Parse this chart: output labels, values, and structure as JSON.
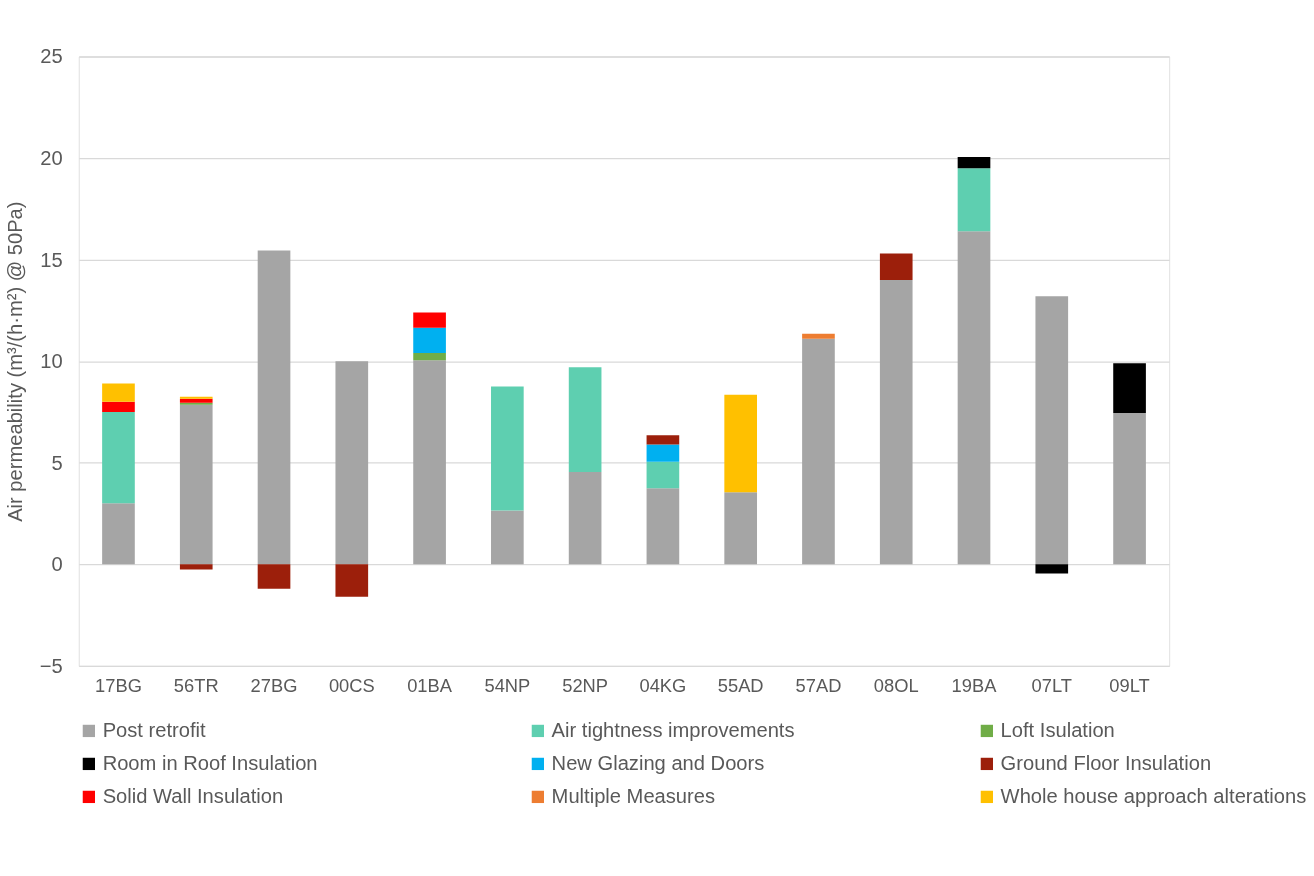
{
  "chart_data": {
    "type": "bar",
    "stacked": true,
    "ylabel": "Air permeability  (m³/(h·m²) @ 50Pa)",
    "categories": [
      "17BG",
      "56TR",
      "27BG",
      "00CS",
      "01BA",
      "54NP",
      "52NP",
      "04KG",
      "55AD",
      "57AD",
      "08OL",
      "19BA",
      "07LT",
      "09LT"
    ],
    "ylim": [
      -5,
      25
    ],
    "yticks": [
      -5,
      0,
      5,
      10,
      15,
      20,
      25
    ],
    "grid": "y",
    "legend": "bottom",
    "series": [
      {
        "name": "Post retrofit",
        "color": "#a5a5a5",
        "values": [
          3.0,
          7.85,
          15.45,
          10.0,
          10.05,
          2.65,
          4.55,
          3.75,
          3.55,
          11.1,
          14.0,
          16.4,
          13.2,
          7.45
        ]
      },
      {
        "name": "Air tightness improvements",
        "color": "#5ecfb0",
        "values": [
          4.5,
          null,
          null,
          null,
          null,
          6.1,
          5.15,
          1.3,
          null,
          null,
          null,
          3.1,
          null,
          null
        ]
      },
      {
        "name": "Loft Isulation",
        "color": "#70ad47",
        "values": [
          null,
          0.1,
          null,
          null,
          0.35,
          null,
          null,
          null,
          null,
          null,
          null,
          null,
          null,
          null
        ]
      },
      {
        "name": "Room in Roof Insulation",
        "color": "#000000",
        "values": [
          null,
          null,
          null,
          null,
          null,
          null,
          null,
          null,
          null,
          null,
          null,
          0.55,
          -0.45,
          2.45
        ]
      },
      {
        "name": "New Glazing and Doors",
        "color": "#00b0f0",
        "values": [
          null,
          null,
          null,
          null,
          1.25,
          null,
          null,
          0.85,
          null,
          null,
          null,
          null,
          null,
          null
        ]
      },
      {
        "name": "Ground Floor Insulation",
        "color": "#9c1f0b",
        "values": [
          null,
          -0.25,
          -1.2,
          -1.6,
          null,
          null,
          null,
          0.45,
          null,
          null,
          1.3,
          null,
          null,
          null
        ]
      },
      {
        "name": "Solid Wall Insulation",
        "color": "#ff0000",
        "values": [
          0.5,
          0.2,
          null,
          null,
          0.75,
          null,
          null,
          null,
          null,
          null,
          null,
          null,
          null,
          null
        ]
      },
      {
        "name": "Multiple Measures",
        "color": "#ed7d31",
        "values": [
          null,
          null,
          null,
          null,
          null,
          null,
          null,
          null,
          null,
          0.25,
          null,
          null,
          null,
          null
        ]
      },
      {
        "name": "Whole house approach alterations",
        "color": "#ffc000",
        "values": [
          0.9,
          0.1,
          null,
          null,
          null,
          null,
          null,
          null,
          4.8,
          null,
          null,
          null,
          null,
          null
        ]
      }
    ]
  }
}
